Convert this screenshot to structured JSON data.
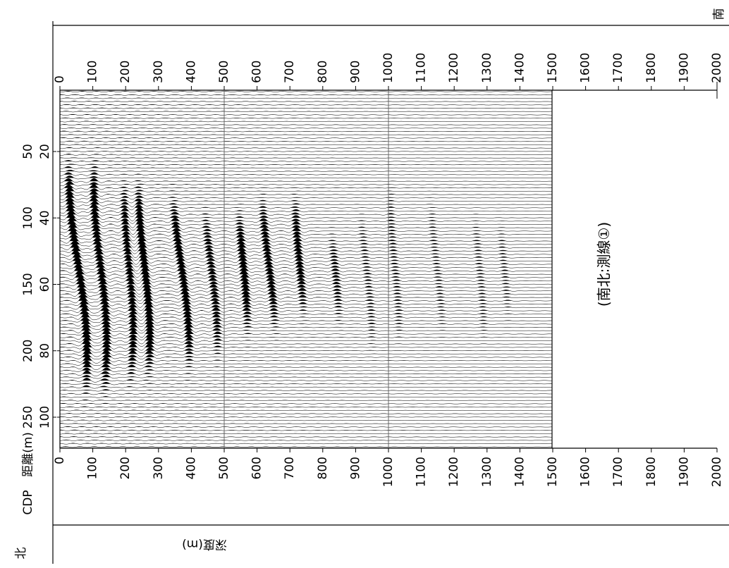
{
  "labels": {
    "south": "南",
    "north": "北",
    "distance_axis": "距離(m)",
    "cdp_axis": "CDP",
    "depth_axis": "深度(m)",
    "line_name": "(南北:測線①)"
  },
  "depth_ticks": [
    0,
    100,
    200,
    300,
    400,
    500,
    600,
    700,
    800,
    900,
    1000,
    1100,
    1200,
    1300,
    1400,
    1500,
    1600,
    1700,
    1800,
    1900,
    2000
  ],
  "distance_ticks": [
    50,
    100,
    150,
    200,
    250
  ],
  "cdp_ticks": [
    20,
    40,
    60,
    80,
    100
  ]
}
